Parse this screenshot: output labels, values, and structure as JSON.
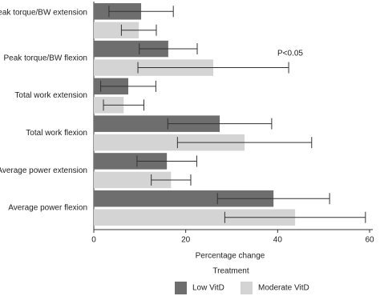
{
  "chart_data": {
    "type": "bar",
    "orientation": "horizontal",
    "categories": [
      "Peak torque/BW extension",
      "Peak torque/BW flexion",
      "Total work extension",
      "Total work flexion",
      "Average power extension",
      "Average power flexion"
    ],
    "series": [
      {
        "name": "Low VitD",
        "color": "#6e6e6e",
        "values": [
          10.3,
          16.2,
          7.5,
          27.4,
          15.9,
          39.1
        ],
        "errors": [
          7.0,
          6.3,
          6.0,
          11.3,
          6.5,
          12.2
        ]
      },
      {
        "name": "Moderate VitD",
        "color": "#d4d4d4",
        "values": [
          9.8,
          26.0,
          6.5,
          32.8,
          16.8,
          43.8
        ],
        "errors": [
          3.8,
          16.4,
          4.4,
          14.6,
          4.3,
          15.3
        ]
      }
    ],
    "xlim": [
      0,
      60
    ],
    "xticks": [
      0,
      20,
      40,
      60
    ],
    "xlabel": "Percentage change",
    "legend_title": "Treatment",
    "annotation": "P<0.05"
  }
}
